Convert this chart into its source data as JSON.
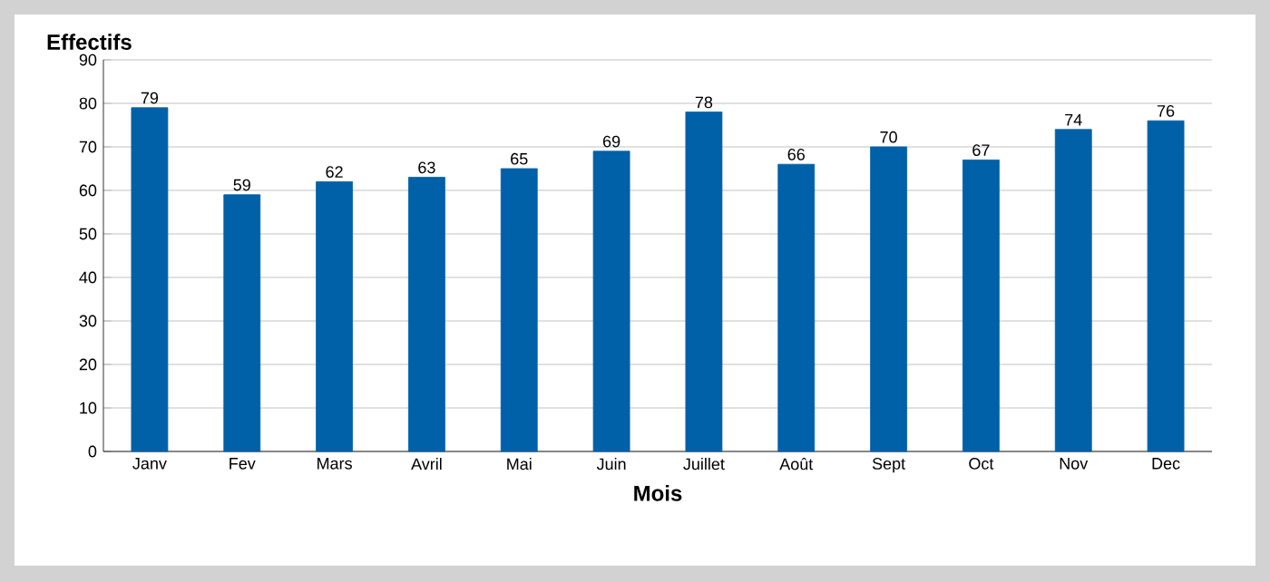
{
  "chart_data": {
    "type": "bar",
    "xlabel": "Mois",
    "ylabel": "Effectifs",
    "categories": [
      "Janv",
      "Fev",
      "Mars",
      "Avril",
      "Mai",
      "Juin",
      "Juillet",
      "Août",
      "Sept",
      "Oct",
      "Nov",
      "Dec"
    ],
    "values": [
      79,
      59,
      62,
      63,
      65,
      69,
      78,
      66,
      70,
      67,
      74,
      76
    ],
    "color": "#0060a8",
    "ylim": [
      0,
      90
    ],
    "yticks": [
      0,
      10,
      20,
      30,
      40,
      50,
      60,
      70,
      80,
      90
    ],
    "grid": "y",
    "data_labels": true
  }
}
